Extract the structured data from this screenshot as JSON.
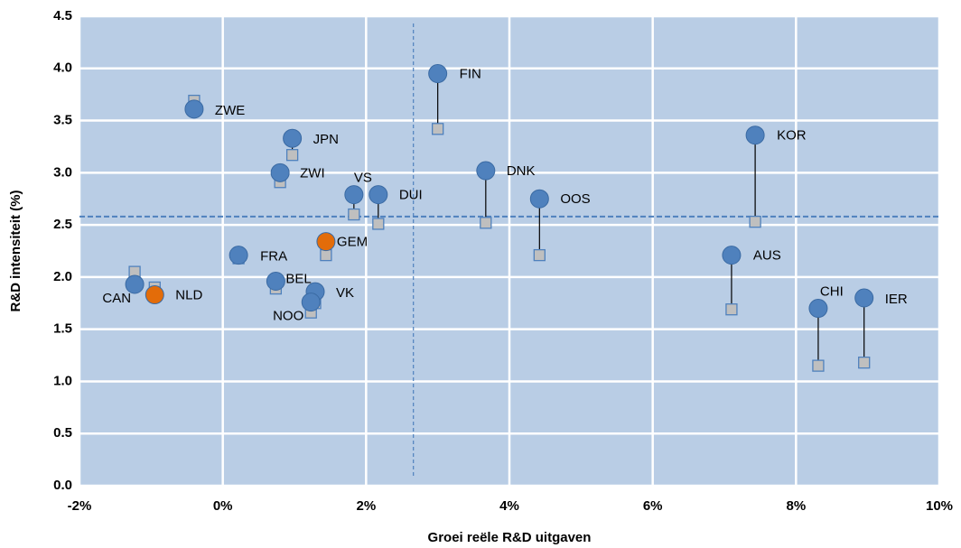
{
  "chart_data": {
    "type": "scatter",
    "x_label": "Groei reële R&D uitgaven",
    "y_label": "R&D intensiteit (%)",
    "xlim": [
      -2,
      10
    ],
    "xticks": [
      {
        "value": -2,
        "label": "-2%"
      },
      {
        "value": 0,
        "label": "0%"
      },
      {
        "value": 2,
        "label": "2%"
      },
      {
        "value": 4,
        "label": "4%"
      },
      {
        "value": 6,
        "label": "6%"
      },
      {
        "value": 8,
        "label": "8%"
      },
      {
        "value": 10,
        "label": "10%"
      }
    ],
    "ylim": [
      0,
      4.5
    ],
    "yticks": [
      {
        "value": 0,
        "label": "0.0"
      },
      0.5,
      {
        "value": 1,
        "label": "1.0"
      },
      1.5,
      {
        "value": 2,
        "label": "2.0"
      },
      2.5,
      {
        "value": 3,
        "label": "3.0"
      },
      3.5,
      {
        "value": 4,
        "label": "4.0"
      },
      4.5
    ],
    "grid": true,
    "ref_x": 2.66,
    "ref_y": 2.58,
    "points": [
      {
        "label": "ZWE",
        "x": -0.4,
        "y": 3.61,
        "y0": 3.69,
        "color": "#4f81bd"
      },
      {
        "label": "JPN",
        "x": 0.97,
        "y": 3.33,
        "y0": 3.17,
        "color": "#4f81bd"
      },
      {
        "label": "ZWI",
        "x": 0.8,
        "y": 3.0,
        "y0": 2.91,
        "color": "#4f81bd"
      },
      {
        "label": "VS",
        "x": 1.83,
        "y": 2.79,
        "y0": 2.6,
        "color": "#4f81bd"
      },
      {
        "label": "DUI",
        "x": 2.17,
        "y": 2.79,
        "y0": 2.51,
        "color": "#4f81bd"
      },
      {
        "label": "FIN",
        "x": 3.0,
        "y": 3.95,
        "y0": 3.42,
        "color": "#4f81bd"
      },
      {
        "label": "DNK",
        "x": 3.67,
        "y": 3.02,
        "y0": 2.52,
        "color": "#4f81bd"
      },
      {
        "label": "OOS",
        "x": 4.42,
        "y": 2.75,
        "y0": 2.21,
        "color": "#4f81bd"
      },
      {
        "label": "KOR",
        "x": 7.43,
        "y": 3.36,
        "y0": 2.53,
        "color": "#4f81bd"
      },
      {
        "label": "AUS",
        "x": 7.1,
        "y": 2.21,
        "y0": 1.69,
        "color": "#4f81bd"
      },
      {
        "label": "CHI",
        "x": 8.31,
        "y": 1.7,
        "y0": 1.15,
        "color": "#4f81bd"
      },
      {
        "label": "IER",
        "x": 8.95,
        "y": 1.8,
        "y0": 1.18,
        "color": "#4f81bd"
      },
      {
        "label": "GEM",
        "x": 1.44,
        "y": 2.34,
        "y0": 2.21,
        "color": "#e36c09"
      },
      {
        "label": "FRA",
        "x": 0.22,
        "y": 2.21,
        "y0": 2.18,
        "color": "#4f81bd"
      },
      {
        "label": "BEL",
        "x": 0.74,
        "y": 1.96,
        "y0": 1.89,
        "color": "#4f81bd"
      },
      {
        "label": "VK",
        "x": 1.29,
        "y": 1.86,
        "y0": 1.75,
        "color": "#4f81bd"
      },
      {
        "label": "NOO",
        "x": 1.23,
        "y": 1.76,
        "y0": 1.66,
        "color": "#4f81bd"
      },
      {
        "label": "CAN",
        "x": -1.23,
        "y": 1.93,
        "y0": 2.05,
        "color": "#4f81bd"
      },
      {
        "label": "NLD",
        "x": -0.95,
        "y": 1.83,
        "y0": 1.9,
        "color": "#e36c09"
      }
    ]
  }
}
